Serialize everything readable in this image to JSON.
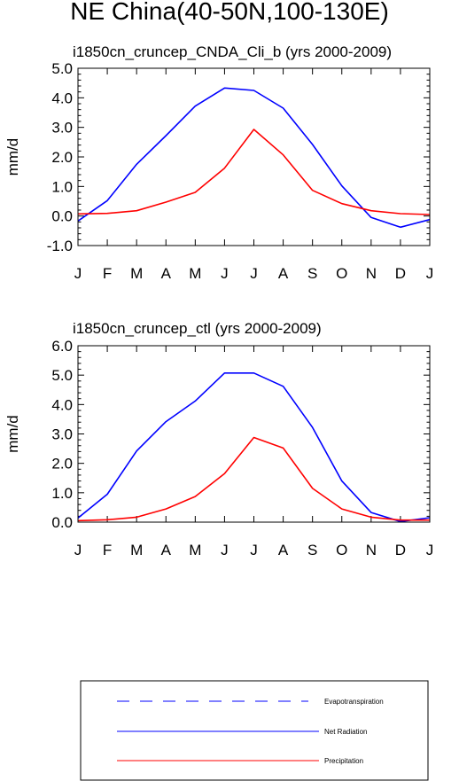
{
  "figure_title": "NE China(40-50N,100-130E)",
  "colors": {
    "net_radiation": "#0000ff",
    "precipitation": "#ff0000",
    "evapotranspiration": "#0000ff"
  },
  "legend": {
    "items": [
      {
        "label": "Evapotranspiration",
        "style": "dashed",
        "color": "#0000ff"
      },
      {
        "label": "Net Radiation",
        "style": "solid",
        "color": "#0000ff"
      },
      {
        "label": "Precipitation",
        "style": "solid",
        "color": "#ff0000"
      }
    ]
  },
  "chart_data": [
    {
      "type": "line",
      "title": "i1850cn_cruncep_CNDA_Cli_b (yrs 2000-2009)",
      "ylabel": "mm/d",
      "xlabel": "",
      "categories": [
        "J",
        "F",
        "M",
        "A",
        "M",
        "J",
        "J",
        "A",
        "S",
        "O",
        "N",
        "D",
        "J"
      ],
      "ylim": [
        -1.0,
        5.0
      ],
      "yticks": [
        "-1.0",
        "0.0",
        "1.0",
        "2.0",
        "3.0",
        "4.0",
        "5.0"
      ],
      "series": [
        {
          "name": "Net Radiation",
          "color": "#0000ff",
          "values": [
            -0.17,
            0.52,
            1.75,
            2.72,
            3.72,
            4.33,
            4.25,
            3.65,
            2.42,
            1.02,
            -0.05,
            -0.38,
            -0.12
          ]
        },
        {
          "name": "Precipitation",
          "color": "#ff0000",
          "values": [
            0.07,
            0.09,
            0.18,
            0.47,
            0.8,
            1.62,
            2.93,
            2.07,
            0.87,
            0.42,
            0.18,
            0.08,
            0.05
          ]
        }
      ]
    },
    {
      "type": "line",
      "title": "i1850cn_cruncep_ctl (yrs 2000-2009)",
      "ylabel": "mm/d",
      "xlabel": "",
      "categories": [
        "J",
        "F",
        "M",
        "A",
        "M",
        "J",
        "J",
        "A",
        "S",
        "O",
        "N",
        "D",
        "J"
      ],
      "ylim": [
        0.0,
        6.0
      ],
      "yticks": [
        "0.0",
        "1.0",
        "2.0",
        "3.0",
        "4.0",
        "5.0",
        "6.0"
      ],
      "series": [
        {
          "name": "Net Radiation",
          "color": "#0000ff",
          "values": [
            0.14,
            0.95,
            2.42,
            3.42,
            4.12,
            5.07,
            5.07,
            4.62,
            3.22,
            1.4,
            0.33,
            0.02,
            0.15
          ]
        },
        {
          "name": "Precipitation",
          "color": "#ff0000",
          "values": [
            0.05,
            0.08,
            0.17,
            0.45,
            0.87,
            1.65,
            2.88,
            2.52,
            1.15,
            0.45,
            0.17,
            0.07,
            0.07
          ]
        }
      ]
    }
  ]
}
